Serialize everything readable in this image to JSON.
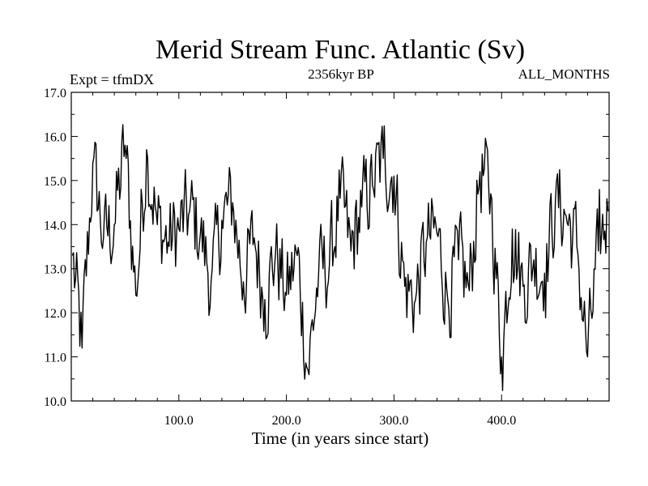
{
  "chart_data": {
    "type": "line",
    "title": "Merid Stream Func. Atlantic (Sv)",
    "subtitle_left": "Expt = tfmDX",
    "subtitle_center": "2356kyr BP",
    "subtitle_right": "ALL_MONTHS",
    "xlabel": "Time (in years since start)",
    "ylabel": "",
    "xlim": [
      0,
      500
    ],
    "ylim": [
      10.0,
      17.0
    ],
    "xticks": [
      100,
      200,
      300,
      400
    ],
    "xtick_labels": [
      "100.0",
      "200.0",
      "300.0",
      "400.0"
    ],
    "yticks": [
      10,
      11,
      12,
      13,
      14,
      15,
      16,
      17
    ],
    "ytick_labels": [
      "10.0",
      "11.0",
      "12.0",
      "13.0",
      "14.0",
      "15.0",
      "16.0",
      "17.0"
    ],
    "series": [
      {
        "name": "Merid Stream Func. Atlantic",
        "color": "#000000",
        "x": [
          1,
          10,
          20,
          30,
          40,
          50,
          60,
          70,
          80,
          90,
          100,
          110,
          120,
          130,
          140,
          150,
          160,
          170,
          180,
          190,
          200,
          210,
          220,
          230,
          240,
          250,
          260,
          270,
          280,
          290,
          300,
          310,
          320,
          330,
          340,
          350,
          360,
          370,
          380,
          390,
          400,
          410,
          420,
          430,
          440,
          450,
          460,
          470,
          480,
          490,
          499
        ],
        "values": [
          13.3,
          11.2,
          15.4,
          13.7,
          14.0,
          15.8,
          12.4,
          15.7,
          14.0,
          13.6,
          13.9,
          14.3,
          13.8,
          12.7,
          14.1,
          14.5,
          12.7,
          13.7,
          12.3,
          13.4,
          12.4,
          13.3,
          10.7,
          12.9,
          13.1,
          14.6,
          13.4,
          14.4,
          14.9,
          15.5,
          15.1,
          12.6,
          12.3,
          13.6,
          13.8,
          12.3,
          13.2,
          12.5,
          15.2,
          14.7,
          11.0,
          13.9,
          12.6,
          13.2,
          12.9,
          14.5,
          14.2,
          13.5,
          11.0,
          13.4,
          14.3
        ]
      }
    ]
  }
}
